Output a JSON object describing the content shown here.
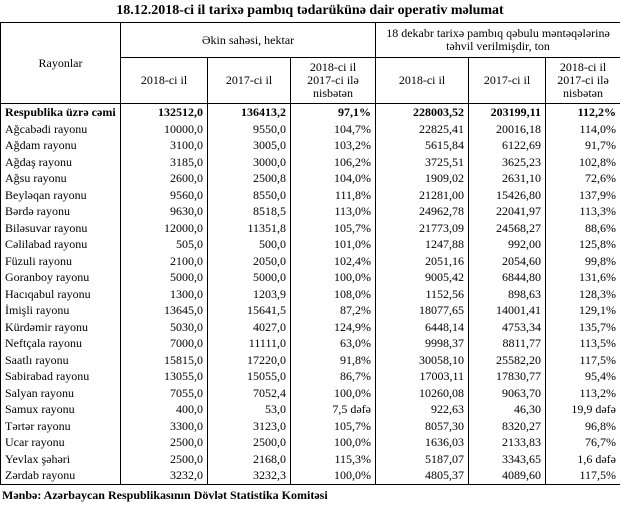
{
  "title": "18.12.2018-ci il tarixə pambıq tədarükünə dair operativ məlumat",
  "table": {
    "header": {
      "region": "Rayonlar",
      "groups": [
        "Əkin sahəsi, hektar",
        "18 dekabr tarixə pambıq qəbulu məntəqələrinə təhvil verilmişdir, ton"
      ],
      "subheaders": [
        "2018-ci il",
        "2017-ci il",
        "2018-ci il 2017-ci ilə nisbətən",
        "2018-ci il",
        "2017-ci il",
        "2018-ci il 2017-ci ilə nisbətən"
      ]
    },
    "rows": [
      [
        "Respublika üzrə cəmi",
        "132512,0",
        "136413,2",
        "97,1%",
        "228003,52",
        "203199,11",
        "112,2%"
      ],
      [
        "Ağcabədi rayonu",
        "10000,0",
        "9550,0",
        "104,7%",
        "22825,41",
        "20016,18",
        "114,0%"
      ],
      [
        "Ağdam rayonu",
        "3100,0",
        "3005,0",
        "103,2%",
        "5615,84",
        "6122,69",
        "91,7%"
      ],
      [
        "Ağdaş rayonu",
        "3185,0",
        "3000,0",
        "106,2%",
        "3725,51",
        "3625,23",
        "102,8%"
      ],
      [
        "Ağsu rayonu",
        "2600,0",
        "2500,8",
        "104,0%",
        "1909,02",
        "2631,10",
        "72,6%"
      ],
      [
        "Beyləqan rayonu",
        "9560,0",
        "8550,0",
        "111,8%",
        "21281,00",
        "15426,80",
        "137,9%"
      ],
      [
        "Bərdə rayonu",
        "9630,0",
        "8518,5",
        "113,0%",
        "24962,78",
        "22041,97",
        "113,3%"
      ],
      [
        "Biləsuvar rayonu",
        "12000,0",
        "11351,8",
        "105,7%",
        "21773,09",
        "24568,27",
        "88,6%"
      ],
      [
        "Cəlilabad rayonu",
        "505,0",
        "500,0",
        "101,0%",
        "1247,88",
        "992,00",
        "125,8%"
      ],
      [
        "Füzuli rayonu",
        "2100,0",
        "2050,0",
        "102,4%",
        "2051,16",
        "2054,60",
        "99,8%"
      ],
      [
        "Goranboy rayonu",
        "5000,0",
        "5000,0",
        "100,0%",
        "9005,42",
        "6844,80",
        "131,6%"
      ],
      [
        "Hacıqabul rayonu",
        "1300,0",
        "1203,9",
        "108,0%",
        "1152,56",
        "898,63",
        "128,3%"
      ],
      [
        "İmişli rayonu",
        "13645,0",
        "15641,5",
        "87,2%",
        "18077,65",
        "14001,41",
        "129,1%"
      ],
      [
        "Kürdəmir rayonu",
        "5030,0",
        "4027,0",
        "124,9%",
        "6448,14",
        "4753,34",
        "135,7%"
      ],
      [
        "Neftçala rayonu",
        "7000,0",
        "11111,0",
        "63,0%",
        "9998,37",
        "8811,77",
        "113,5%"
      ],
      [
        "Saatlı rayonu",
        "15815,0",
        "17220,0",
        "91,8%",
        "30058,10",
        "25582,20",
        "117,5%"
      ],
      [
        "Sabirabad rayonu",
        "13055,0",
        "15055,0",
        "86,7%",
        "17003,11",
        "17830,77",
        "95,4%"
      ],
      [
        "Salyan rayonu",
        "7055,0",
        "7052,4",
        "100,0%",
        "10260,08",
        "9063,70",
        "113,2%"
      ],
      [
        "Samux rayonu",
        "400,0",
        "53,0",
        "7,5 dəfə",
        "922,63",
        "46,30",
        "19,9 dəfə"
      ],
      [
        "Tərtər rayonu",
        "3300,0",
        "3123,0",
        "105,7%",
        "8057,30",
        "8320,27",
        "96,8%"
      ],
      [
        "Ucar rayonu",
        "2500,0",
        "2500,0",
        "100,0%",
        "1636,03",
        "2133,83",
        "76,7%"
      ],
      [
        "Yevlax şəhəri",
        "2500,0",
        "2168,0",
        "115,3%",
        "5187,07",
        "3343,65",
        "1,6 dəfə"
      ],
      [
        "Zərdab rayonu",
        "3232,0",
        "3232,3",
        "100,0%",
        "4805,37",
        "4089,60",
        "117,5%"
      ]
    ]
  },
  "source": "Mənbə: Azərbaycan Respublikasının Dövlət Statistika Komitəsi"
}
